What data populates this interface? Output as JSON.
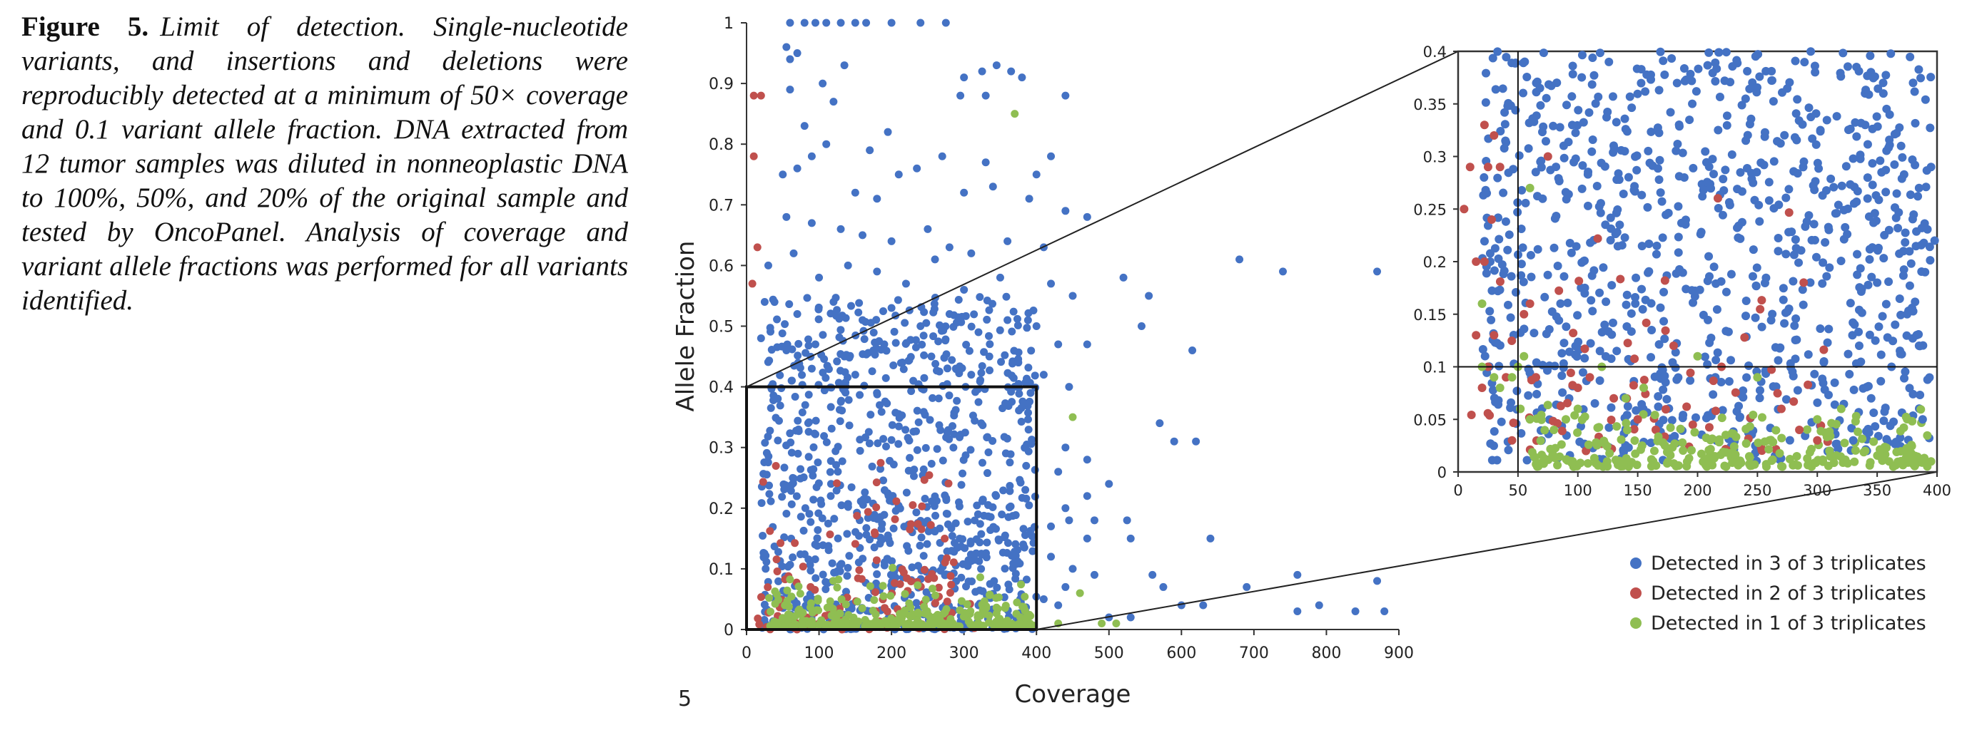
{
  "caption": {
    "label": "Figure 5.",
    "text": "Limit of detection. Single-nucleotide variants, and insertions and deletions were reproducibly detected at a minimum of 50× coverage and 0.1 variant allele fraction. DNA extracted from 12 tumor samples was diluted in nonneoplastic DNA to 100%, 50%, and 20% of the original sample and tested by OncoPanel. Analysis of coverage and variant allele fractions was performed for all variants identified."
  },
  "panel_number": "5",
  "colors": {
    "blue": "#4472c4",
    "red": "#c0504d",
    "green": "#8fbe52",
    "axis": "#333333"
  },
  "chart_data": [
    {
      "type": "scatter",
      "panel": "main",
      "xlabel": "Coverage",
      "ylabel": "Allele Fraction",
      "xlim": [
        0,
        900
      ],
      "ylim": [
        0,
        1
      ],
      "x_ticks": [
        "0",
        "100",
        "200",
        "300",
        "400",
        "500",
        "600",
        "700",
        "800",
        "900"
      ],
      "y_ticks": [
        "0",
        "0.1",
        "0.2",
        "0.3",
        "0.4",
        "0.5",
        "0.6",
        "0.7",
        "0.8",
        "0.9",
        "1"
      ],
      "zoom_box": {
        "x": [
          0,
          400
        ],
        "y": [
          0,
          0.4
        ]
      },
      "series": [
        {
          "name": "Detected in 3 of 3 triplicates",
          "color": "#4472c4",
          "points": [
            [
              60,
              1.0
            ],
            [
              80,
              1.0
            ],
            [
              95,
              1.0
            ],
            [
              110,
              1.0
            ],
            [
              130,
              1.0
            ],
            [
              150,
              1.0
            ],
            [
              165,
              1.0
            ],
            [
              200,
              1.0
            ],
            [
              240,
              1.0
            ],
            [
              275,
              1.0
            ],
            [
              55,
              0.96
            ],
            [
              70,
              0.95
            ],
            [
              60,
              0.94
            ],
            [
              135,
              0.93
            ],
            [
              105,
              0.9
            ],
            [
              60,
              0.89
            ],
            [
              120,
              0.87
            ],
            [
              300,
              0.91
            ],
            [
              325,
              0.92
            ],
            [
              345,
              0.93
            ],
            [
              365,
              0.92
            ],
            [
              380,
              0.91
            ],
            [
              295,
              0.88
            ],
            [
              330,
              0.88
            ],
            [
              440,
              0.88
            ],
            [
              80,
              0.83
            ],
            [
              110,
              0.8
            ],
            [
              195,
              0.82
            ],
            [
              170,
              0.79
            ],
            [
              90,
              0.78
            ],
            [
              270,
              0.78
            ],
            [
              330,
              0.77
            ],
            [
              420,
              0.78
            ],
            [
              50,
              0.75
            ],
            [
              70,
              0.76
            ],
            [
              210,
              0.75
            ],
            [
              235,
              0.76
            ],
            [
              150,
              0.72
            ],
            [
              180,
              0.71
            ],
            [
              300,
              0.72
            ],
            [
              340,
              0.73
            ],
            [
              400,
              0.75
            ],
            [
              390,
              0.71
            ],
            [
              440,
              0.69
            ],
            [
              470,
              0.68
            ],
            [
              55,
              0.68
            ],
            [
              90,
              0.67
            ],
            [
              130,
              0.66
            ],
            [
              160,
              0.65
            ],
            [
              200,
              0.64
            ],
            [
              250,
              0.66
            ],
            [
              280,
              0.63
            ],
            [
              310,
              0.62
            ],
            [
              360,
              0.64
            ],
            [
              410,
              0.63
            ],
            [
              30,
              0.6
            ],
            [
              65,
              0.62
            ],
            [
              100,
              0.58
            ],
            [
              140,
              0.6
            ],
            [
              180,
              0.59
            ],
            [
              220,
              0.57
            ],
            [
              260,
              0.61
            ],
            [
              300,
              0.56
            ],
            [
              350,
              0.58
            ],
            [
              420,
              0.57
            ],
            [
              450,
              0.55
            ],
            [
              520,
              0.58
            ],
            [
              555,
              0.55
            ],
            [
              680,
              0.61
            ],
            [
              740,
              0.59
            ],
            [
              870,
              0.59
            ],
            [
              25,
              0.54
            ],
            [
              70,
              0.52
            ],
            [
              120,
              0.54
            ],
            [
              160,
              0.51
            ],
            [
              200,
              0.53
            ],
            [
              240,
              0.5
            ],
            [
              280,
              0.52
            ],
            [
              320,
              0.49
            ],
            [
              360,
              0.51
            ],
            [
              400,
              0.5
            ],
            [
              430,
              0.47
            ],
            [
              470,
              0.47
            ],
            [
              545,
              0.5
            ],
            [
              615,
              0.46
            ],
            [
              20,
              0.48
            ],
            [
              55,
              0.46
            ],
            [
              95,
              0.47
            ],
            [
              135,
              0.45
            ],
            [
              175,
              0.46
            ],
            [
              215,
              0.44
            ],
            [
              255,
              0.45
            ],
            [
              295,
              0.43
            ],
            [
              335,
              0.45
            ],
            [
              375,
              0.44
            ],
            [
              410,
              0.42
            ],
            [
              445,
              0.4
            ],
            [
              90,
              0.43
            ],
            [
              150,
              0.42
            ],
            [
              230,
              0.41
            ],
            [
              310,
              0.42
            ],
            [
              570,
              0.34
            ],
            [
              590,
              0.31
            ],
            [
              620,
              0.31
            ],
            [
              440,
              0.3
            ],
            [
              470,
              0.28
            ],
            [
              430,
              0.26
            ],
            [
              500,
              0.24
            ],
            [
              470,
              0.22
            ],
            [
              440,
              0.2
            ],
            [
              420,
              0.17
            ],
            [
              445,
              0.18
            ],
            [
              480,
              0.18
            ],
            [
              525,
              0.18
            ],
            [
              470,
              0.15
            ],
            [
              530,
              0.15
            ],
            [
              640,
              0.15
            ],
            [
              420,
              0.12
            ],
            [
              450,
              0.1
            ],
            [
              480,
              0.09
            ],
            [
              440,
              0.07
            ],
            [
              560,
              0.09
            ],
            [
              575,
              0.07
            ],
            [
              600,
              0.04
            ],
            [
              630,
              0.04
            ],
            [
              690,
              0.07
            ],
            [
              760,
              0.09
            ],
            [
              760,
              0.03
            ],
            [
              790,
              0.04
            ],
            [
              840,
              0.03
            ],
            [
              870,
              0.08
            ],
            [
              880,
              0.03
            ],
            [
              410,
              0.05
            ],
            [
              430,
              0.04
            ],
            [
              500,
              0.02
            ],
            [
              530,
              0.02
            ]
          ]
        },
        {
          "name": "Detected in 2 of 3 triplicates",
          "color": "#c0504d",
          "points": [
            [
              10,
              0.88
            ],
            [
              20,
              0.88
            ],
            [
              10,
              0.78
            ],
            [
              15,
              0.63
            ],
            [
              8,
              0.57
            ]
          ]
        },
        {
          "name": "Detected in 1 of 3 triplicates",
          "color": "#8fbe52",
          "points": [
            [
              370,
              0.85
            ],
            [
              450,
              0.35
            ],
            [
              460,
              0.06
            ],
            [
              510,
              0.01
            ],
            [
              490,
              0.01
            ],
            [
              430,
              0.01
            ]
          ]
        }
      ]
    },
    {
      "type": "scatter",
      "panel": "inset",
      "xlim": [
        0,
        400
      ],
      "ylim": [
        0,
        0.4
      ],
      "x_ticks": [
        "0",
        "50",
        "100",
        "150",
        "200",
        "250",
        "300",
        "350",
        "400"
      ],
      "y_ticks": [
        "0",
        "0.05",
        "0.1",
        "0.15",
        "0.2",
        "0.25",
        "0.3",
        "0.35",
        "0.4"
      ],
      "reference_lines": {
        "x": 50,
        "y": 0.1
      },
      "legend_position": "bottom-right",
      "series": [
        {
          "name": "Detected in 3 of 3 triplicates",
          "color": "#4472c4",
          "points": [
            [
              380,
              0.37
            ],
            [
              330,
              0.03
            ],
            [
              345,
              0.07
            ],
            [
              362,
              0.1
            ],
            [
              375,
              0.15
            ],
            [
              388,
              0.05
            ],
            [
              395,
              0.29
            ],
            [
              398,
              0.22
            ],
            [
              340,
              0.33
            ],
            [
              355,
              0.37
            ],
            [
              370,
              0.31
            ],
            [
              385,
              0.27
            ],
            [
              360,
              0.23
            ],
            [
              350,
              0.18
            ],
            [
              372,
              0.21
            ],
            [
              385,
              0.12
            ],
            [
              342,
              0.26
            ],
            [
              365,
              0.14
            ],
            [
              390,
              0.19
            ],
            [
              335,
              0.12
            ]
          ]
        },
        {
          "name": "Detected in 2 of 3 triplicates",
          "color": "#c0504d",
          "points": [
            [
              5,
              0.25
            ],
            [
              15,
              0.2
            ],
            [
              10,
              0.29
            ],
            [
              22,
              0.2
            ],
            [
              25,
              0.29
            ],
            [
              35,
              0.29
            ],
            [
              15,
              0.13
            ],
            [
              30,
              0.13
            ],
            [
              25,
              0.1
            ],
            [
              40,
              0.09
            ],
            [
              20,
              0.08
            ],
            [
              45,
              0.03
            ],
            [
              55,
              0.15
            ],
            [
              60,
              0.16
            ],
            [
              65,
              0.09
            ],
            [
              75,
              0.3
            ],
            [
              100,
              0.08
            ],
            [
              110,
              0.09
            ],
            [
              130,
              0.07
            ],
            [
              150,
              0.05
            ],
            [
              180,
              0.12
            ],
            [
              220,
              0.1
            ],
            [
              270,
              0.06
            ],
            [
              285,
              0.04
            ],
            [
              300,
              0.03
            ],
            [
              30,
              0.32
            ],
            [
              22,
              0.33
            ],
            [
              28,
              0.24
            ]
          ]
        },
        {
          "name": "Detected in 1 of 3 triplicates",
          "color": "#8fbe52",
          "points": [
            [
              20,
              0.16
            ],
            [
              20,
              0.1
            ],
            [
              30,
              0.09
            ],
            [
              35,
              0.08
            ],
            [
              45,
              0.09
            ],
            [
              50,
              0.1
            ],
            [
              52,
              0.06
            ],
            [
              55,
              0.11
            ],
            [
              60,
              0.27
            ],
            [
              60,
              0.05
            ],
            [
              80,
              0.04
            ],
            [
              90,
              0.05
            ],
            [
              100,
              0.06
            ],
            [
              120,
              0.1
            ],
            [
              140,
              0.07
            ],
            [
              155,
              0.08
            ],
            [
              200,
              0.11
            ],
            [
              250,
              0.09
            ],
            [
              260,
              0.03
            ],
            [
              300,
              0.05
            ],
            [
              320,
              0.06
            ],
            [
              340,
              0.02
            ],
            [
              360,
              0.01
            ],
            [
              370,
              0.01
            ],
            [
              380,
              0.01
            ],
            [
              390,
              0.01
            ],
            [
              395,
              0.01
            ]
          ]
        }
      ]
    }
  ]
}
